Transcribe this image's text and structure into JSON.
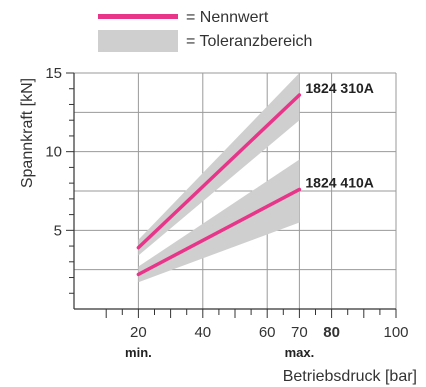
{
  "legend": {
    "nominal_label": "= Nennwert",
    "tolerance_label": "= Toleranzbereich"
  },
  "colors": {
    "line": "#e8358a",
    "band": "#cfcfcf",
    "grid": "#9a9a9a",
    "axis": "#333333"
  },
  "chart_data": {
    "type": "line",
    "xlabel": "Betriebsdruck [bar]",
    "ylabel": "Spannkraft [kN]",
    "xlim": [
      0,
      100
    ],
    "ylim": [
      0,
      15
    ],
    "x_ticks": [
      {
        "value": 20,
        "label": "20"
      },
      {
        "value": 40,
        "label": "40"
      },
      {
        "value": 60,
        "label": "60"
      },
      {
        "value": 70,
        "label": "70"
      },
      {
        "value": 80,
        "label": "80"
      },
      {
        "value": 100,
        "label": "100"
      }
    ],
    "x_bold_ticks": [
      80
    ],
    "y_ticks": [
      {
        "value": 5,
        "label": "5"
      },
      {
        "value": 10,
        "label": "10"
      },
      {
        "value": 15,
        "label": "15"
      }
    ],
    "x_markers": [
      {
        "value": 20,
        "label": "min."
      },
      {
        "value": 70,
        "label": "max."
      }
    ],
    "grid": true,
    "series": [
      {
        "name": "1824 310A",
        "x": [
          20,
          70
        ],
        "y": [
          3.9,
          13.6
        ],
        "band_lower": [
          3.4,
          12.0
        ],
        "band_upper": [
          4.4,
          15.0
        ]
      },
      {
        "name": "1824 410A",
        "x": [
          20,
          70
        ],
        "y": [
          2.2,
          7.6
        ],
        "band_lower": [
          1.7,
          5.5
        ],
        "band_upper": [
          2.7,
          9.5
        ]
      }
    ]
  }
}
